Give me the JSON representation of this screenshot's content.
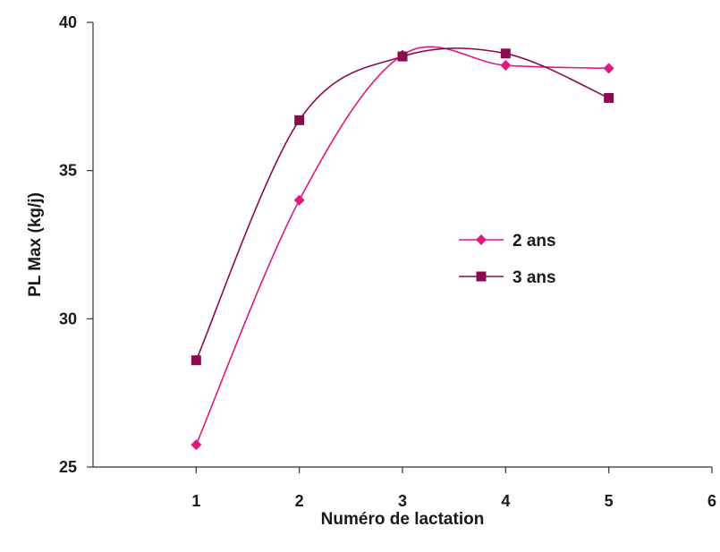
{
  "chart_data": {
    "type": "line",
    "xlabel": "Numéro de lactation",
    "ylabel": "PL Max (kg/j)",
    "xlim": [
      0,
      6
    ],
    "ylim": [
      25,
      40
    ],
    "x_ticks": [
      1,
      2,
      3,
      4,
      5,
      6
    ],
    "y_ticks": [
      25,
      30,
      35,
      40
    ],
    "x_tick_labels": [
      "1",
      "2",
      "3",
      "4",
      "5",
      "6"
    ],
    "y_tick_labels": [
      "25",
      "30",
      "35",
      "40"
    ],
    "grid": false,
    "smooth": true,
    "legend_position": "center-right",
    "series": [
      {
        "name": "2 ans",
        "marker": "diamond",
        "color": "#e0197d",
        "x": [
          1,
          2,
          3,
          4,
          5
        ],
        "y": [
          25.75,
          34.0,
          38.9,
          38.55,
          38.45
        ]
      },
      {
        "name": "3 ans",
        "marker": "square",
        "color": "#8b0a50",
        "x": [
          1,
          2,
          3,
          4,
          5
        ],
        "y": [
          28.6,
          36.7,
          38.85,
          38.95,
          37.45
        ]
      }
    ]
  }
}
